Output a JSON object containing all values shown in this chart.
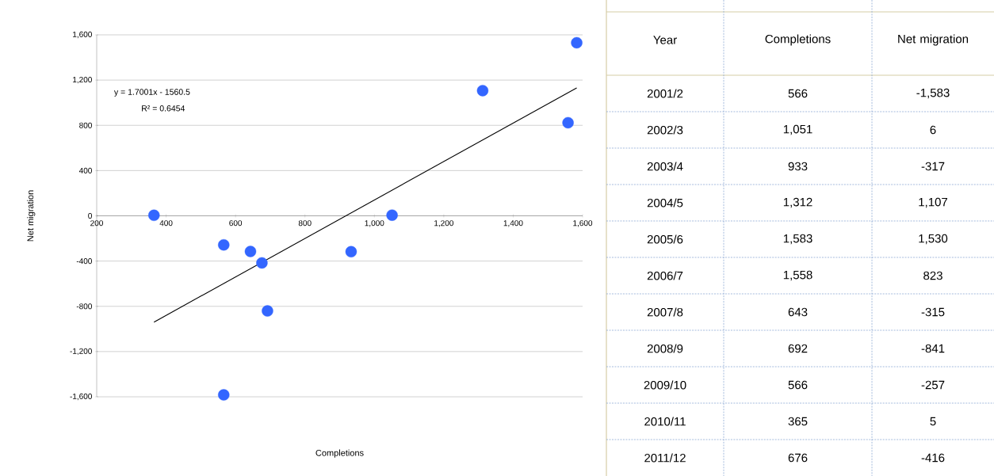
{
  "chart_data": [
    {
      "type": "scatter",
      "xlabel": "Completions",
      "ylabel": "Net migration",
      "series": [
        {
          "type": "scatter",
          "color": "#3366ff",
          "marker": "circle",
          "x": [
            566,
            1051,
            933,
            1312,
            1583,
            1558,
            643,
            692,
            566,
            365,
            676
          ],
          "values": [
            -1583,
            6,
            -317,
            1107,
            1530,
            823,
            -315,
            -841,
            -257,
            5,
            -416
          ]
        },
        {
          "type": "line",
          "color": "#000000",
          "marker": "none",
          "x": [
            365,
            1583
          ],
          "values": [
            -940,
            1131
          ]
        }
      ],
      "annotations": [
        "y = 1.7001x - 1560.5",
        "R² = 0.6454"
      ],
      "xlim": [
        200,
        1600
      ],
      "ylim": [
        -1600,
        1600
      ],
      "xticks": [
        200,
        400,
        600,
        800,
        {
          "value": 1000,
          "label": "1,000"
        },
        {
          "value": 1200,
          "label": "1,200"
        },
        {
          "value": 1400,
          "label": "1,400"
        },
        {
          "value": 1600,
          "label": "1,600"
        }
      ],
      "yticks": [
        {
          "value": -1600,
          "label": "-1,600"
        },
        {
          "value": -1200,
          "label": "-1,200"
        },
        -800,
        -400,
        0,
        400,
        800,
        {
          "value": 1200,
          "label": "1,200"
        },
        {
          "value": 1600,
          "label": "1,600"
        }
      ],
      "grid": "y"
    },
    {
      "type": "other",
      "annotations": [
        "Year",
        "Completions",
        "Net migration",
        "2001/2",
        "566",
        "-1,583",
        "2002/3",
        "1,051",
        "6",
        "2003/4",
        "933",
        "-317",
        "2004/5",
        "1,312",
        "1,107",
        "2005/6",
        "1,583",
        "1,530",
        "2006/7",
        "1,558",
        "823",
        "2007/8",
        "643",
        "-315",
        "2008/9",
        "692",
        "-841",
        "2009/10",
        "566",
        "-257",
        "2010/11",
        "365",
        "5",
        "2011/12",
        "676",
        "-416"
      ]
    }
  ]
}
